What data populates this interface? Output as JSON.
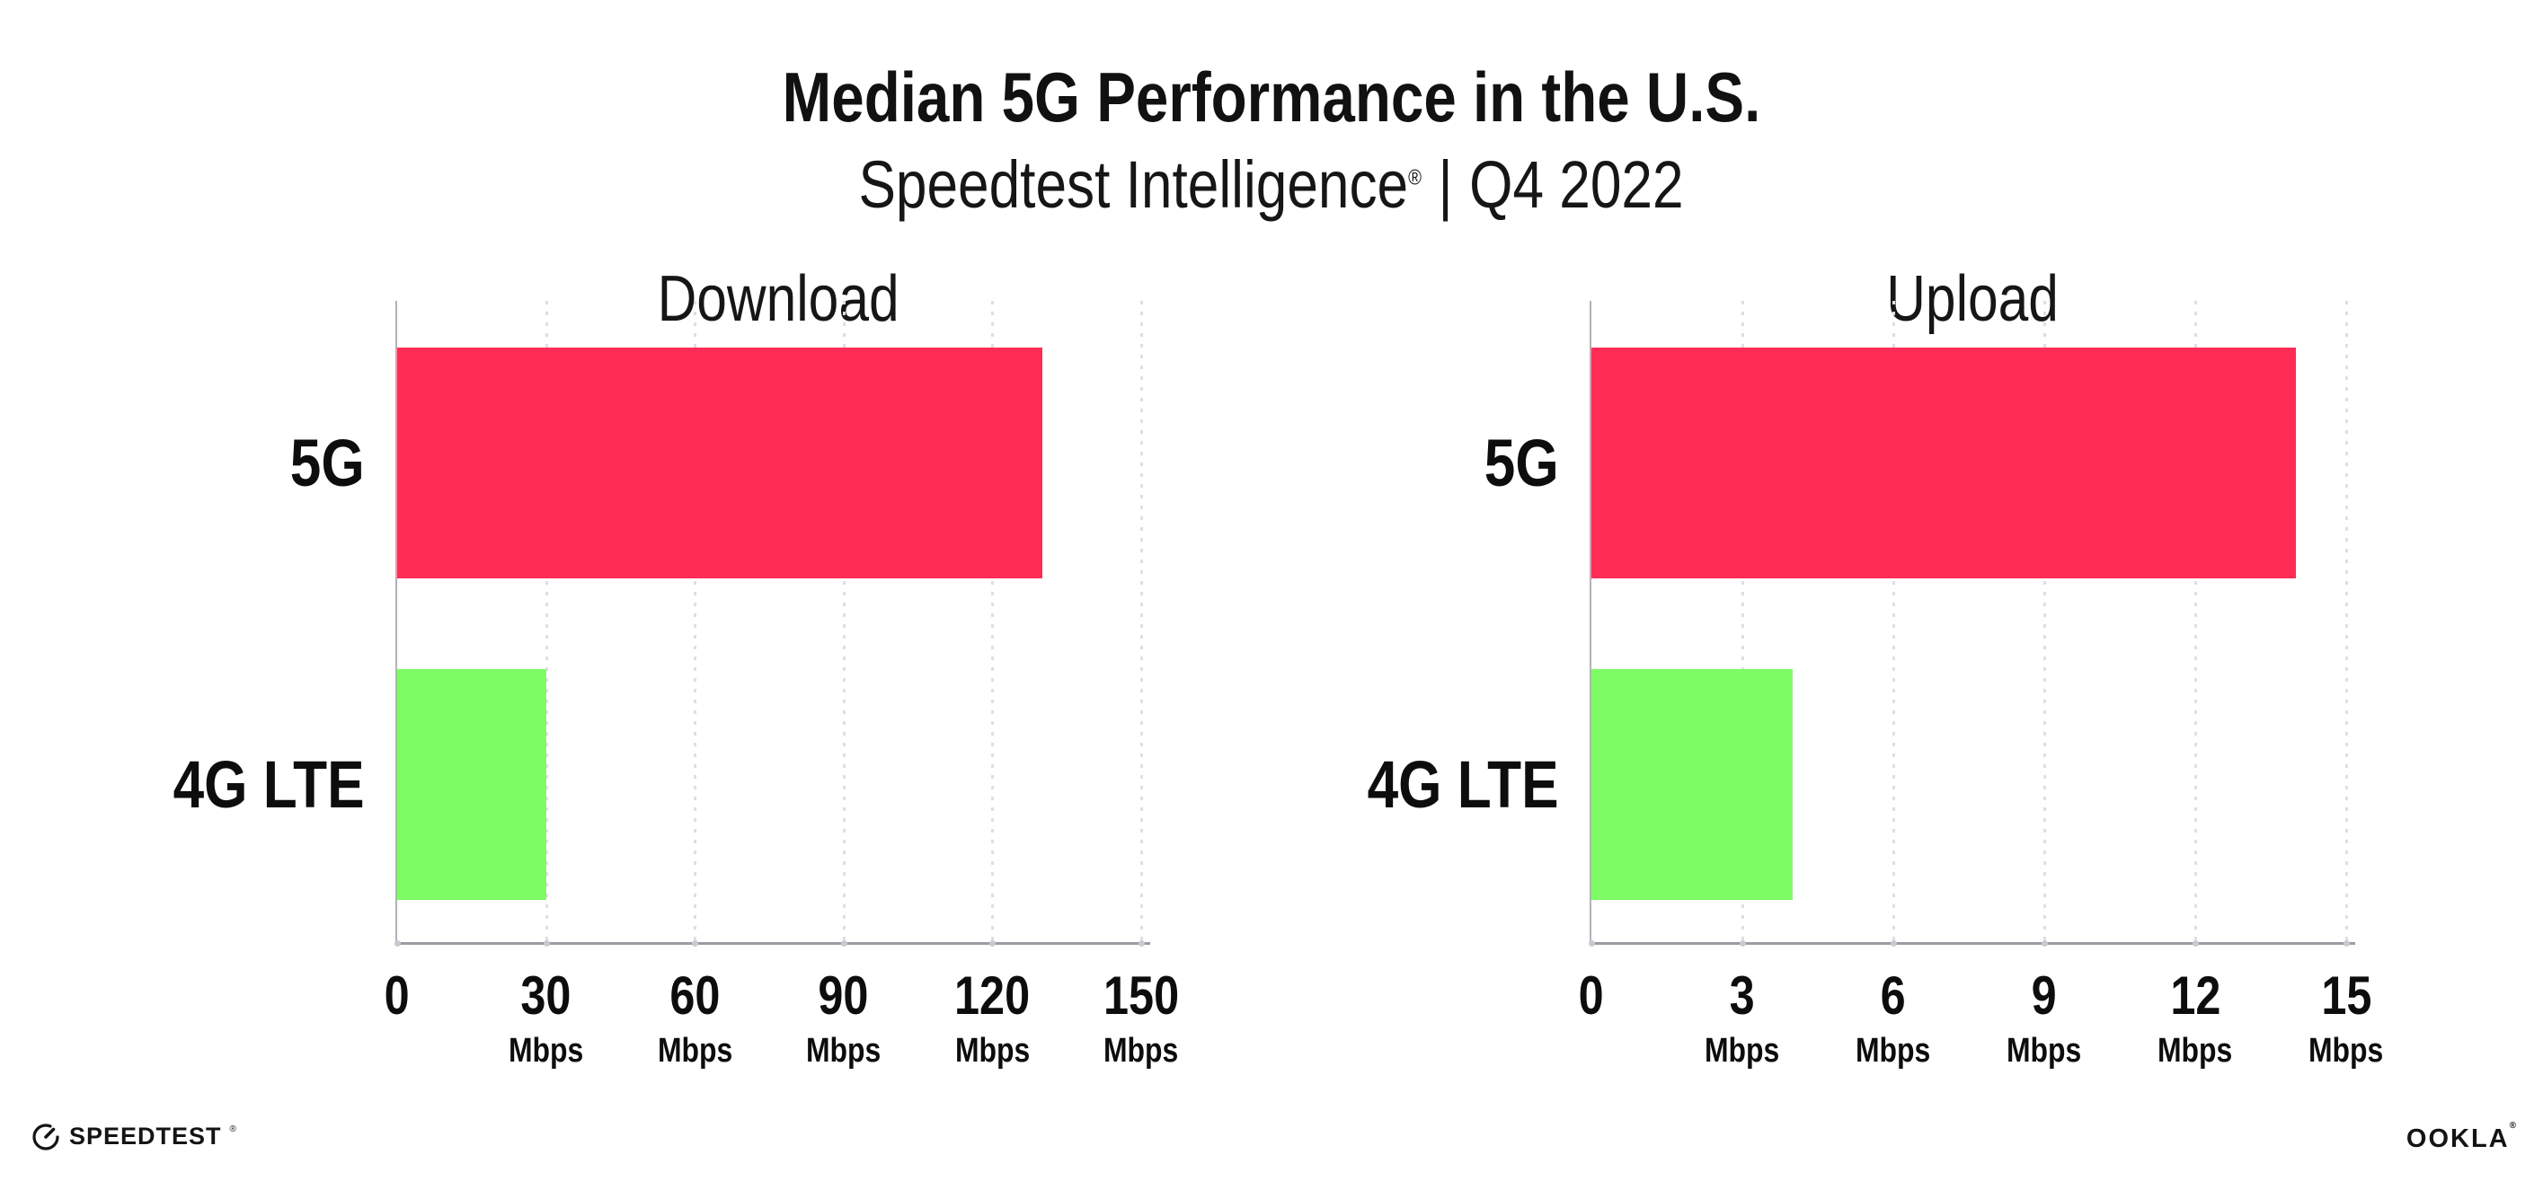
{
  "page": {
    "title": "Median 5G Performance in the U.S.",
    "subtitle": {
      "brand": "Speedtest Intelligence",
      "registered_mark": "®",
      "separator": "|",
      "period": "Q4 2022"
    }
  },
  "chart_data": [
    {
      "type": "bar",
      "orientation": "horizontal",
      "title": "Download",
      "categories": [
        "5G",
        "4G LTE"
      ],
      "values": [
        130,
        30
      ],
      "unit": "Mbps",
      "xlim": [
        0,
        150
      ],
      "xticks": [
        0,
        30,
        60,
        90,
        120,
        150
      ],
      "tick_unit_label": "Mbps",
      "bar_colors": [
        "#FF2D55",
        "#7DFC64"
      ],
      "grid": "dotted vertical gridline at each tick",
      "legend": "none"
    },
    {
      "type": "bar",
      "orientation": "horizontal",
      "title": "Upload",
      "categories": [
        "5G",
        "4G LTE"
      ],
      "values": [
        14,
        4
      ],
      "unit": "Mbps",
      "xlim": [
        0,
        15
      ],
      "xticks": [
        0,
        3,
        6,
        9,
        12,
        15
      ],
      "tick_unit_label": "Mbps",
      "bar_colors": [
        "#FF2D55",
        "#7DFC64"
      ],
      "grid": "dotted vertical gridline at each tick",
      "legend": "none"
    }
  ],
  "footer": {
    "speedtest_logo_text": "SPEEDTEST",
    "speedtest_mark": "®",
    "ookla_logo_text": "OOKLA",
    "ookla_mark": "®"
  },
  "colors": {
    "bar_5g": "#FF2D55",
    "bar_4g_lte": "#7DFC64",
    "axis": "#9b9ba1",
    "gridline": "#dedee6",
    "text": "#111111",
    "background": "#FFFFFF"
  }
}
